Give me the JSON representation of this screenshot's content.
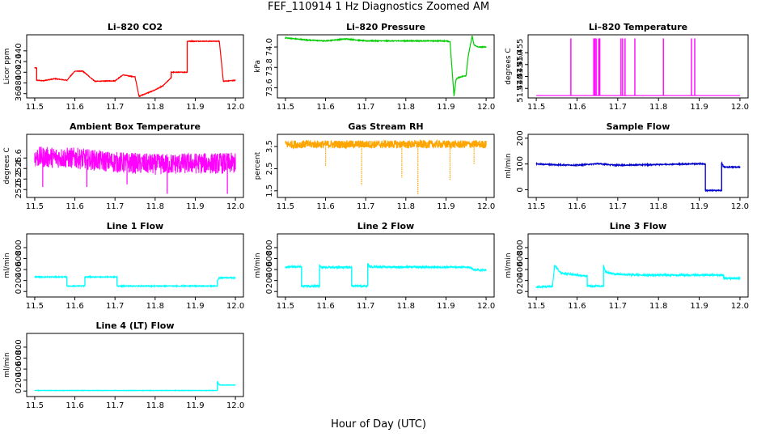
{
  "title": "FEF_110914  1 Hz Diagnostics Zoomed AM",
  "xlabel": "Hour of Day (UTC)",
  "chart_data": [
    {
      "type": "line",
      "title": "Li–820 CO2",
      "ylabel": "Licor ppm",
      "color": "#ff0000",
      "xlim": [
        11.48,
        12.02
      ],
      "ylim": [
        352,
        470
      ],
      "xticks": [
        "11.5",
        "11.6",
        "11.7",
        "11.8",
        "11.9",
        "12.0"
      ],
      "yticks": [
        "360",
        "380",
        "400",
        "420",
        "440"
      ],
      "ytick_values": [
        360,
        380,
        400,
        420,
        440
      ],
      "series": [
        {
          "x": [
            11.5,
            11.505,
            11.505,
            11.52,
            11.55,
            11.58,
            11.6,
            11.62,
            11.65,
            11.7,
            11.72,
            11.75,
            11.76,
            11.76,
            11.8,
            11.82,
            11.84,
            11.84,
            11.88,
            11.88,
            11.96,
            11.97,
            12.0
          ],
          "y": [
            408,
            408,
            385,
            384,
            388,
            385,
            402,
            402,
            383,
            384,
            395,
            391,
            355,
            355,
            367,
            375,
            390,
            400,
            400,
            458,
            458,
            383,
            385
          ]
        }
      ],
      "noise": 0.6
    },
    {
      "type": "line",
      "title": "Li–820 Pressure",
      "ylabel": "kPa",
      "color": "#00cc00",
      "xlim": [
        11.48,
        12.02
      ],
      "ylim": [
        73.5,
        74.12
      ],
      "xticks": [
        "11.5",
        "11.6",
        "11.7",
        "11.8",
        "11.9",
        "12.0"
      ],
      "yticks": [
        "73.6",
        "73.8",
        "74.0"
      ],
      "ytick_values": [
        73.6,
        73.8,
        74.0
      ],
      "series": [
        {
          "x": [
            11.5,
            11.55,
            11.6,
            11.65,
            11.7,
            11.8,
            11.9,
            11.91,
            11.92,
            11.925,
            11.93,
            11.95,
            11.955,
            11.965,
            11.97,
            11.98,
            12.0
          ],
          "y": [
            74.09,
            74.07,
            74.06,
            74.08,
            74.06,
            74.06,
            74.06,
            74.05,
            73.52,
            73.68,
            73.7,
            73.72,
            73.9,
            74.11,
            74.02,
            74.0,
            74.0
          ]
        }
      ],
      "noise": 0.004
    },
    {
      "type": "line",
      "title": "Li–820 Temperature",
      "ylabel": "degrees C",
      "color": "#ff00ff",
      "xlim": [
        11.48,
        12.02
      ],
      "ylim": [
        51.436,
        51.4625
      ],
      "xticks": [
        "11.5",
        "11.6",
        "11.7",
        "11.8",
        "11.9",
        "12.0"
      ],
      "yticks": [
        "51.440",
        "51.445",
        "51.450",
        "51.455"
      ],
      "ytick_values": [
        51.44,
        51.445,
        51.45,
        51.455
      ],
      "baseline": 51.437,
      "spike_top": 51.461,
      "spikes": [
        11.585,
        11.641,
        11.644,
        11.647,
        11.653,
        11.656,
        11.708,
        11.712,
        11.718,
        11.742,
        11.812,
        11.881,
        11.889
      ]
    },
    {
      "type": "line",
      "title": "Ambient Box Temperature",
      "ylabel": "degrees C",
      "color": "#ff00ff",
      "xlim": [
        11.48,
        12.02
      ],
      "ylim": [
        24.85,
        26.05
      ],
      "xticks": [
        "11.5",
        "11.6",
        "11.7",
        "11.8",
        "11.9",
        "12.0"
      ],
      "yticks": [
        "25.0",
        "25.2",
        "25.4",
        "25.6"
      ],
      "ytick_values": [
        25.0,
        25.2,
        25.4,
        25.6
      ],
      "series": [
        {
          "x": [
            11.5,
            11.6,
            11.7,
            11.8,
            11.9,
            12.0
          ],
          "y": [
            25.62,
            25.6,
            25.52,
            25.48,
            25.5,
            25.5
          ]
        }
      ],
      "noise": 0.2,
      "dips": [
        [
          11.52,
          25.05
        ],
        [
          11.63,
          25.05
        ],
        [
          11.73,
          25.1
        ],
        [
          11.83,
          24.92
        ],
        [
          11.98,
          24.92
        ]
      ]
    },
    {
      "type": "line",
      "title": "Gas Stream RH",
      "ylabel": "percent",
      "color": "#ffa500",
      "xlim": [
        11.48,
        12.02
      ],
      "ylim": [
        1.2,
        4.05
      ],
      "xticks": [
        "11.5",
        "11.6",
        "11.7",
        "11.8",
        "11.9",
        "12.0"
      ],
      "yticks": [
        "1.5",
        "2.5",
        "3.5"
      ],
      "ytick_values": [
        1.5,
        2.5,
        3.5
      ],
      "series": [
        {
          "x": [
            11.5,
            11.6,
            11.7,
            11.8,
            11.9,
            12.0
          ],
          "y": [
            3.6,
            3.6,
            3.6,
            3.6,
            3.6,
            3.6
          ]
        }
      ],
      "noise": 0.18,
      "dips": [
        [
          11.6,
          2.6
        ],
        [
          11.69,
          1.75
        ],
        [
          11.79,
          2.1
        ],
        [
          11.83,
          1.3
        ],
        [
          11.91,
          2.0
        ],
        [
          11.97,
          2.7
        ]
      ]
    },
    {
      "type": "line",
      "title": "Sample Flow",
      "ylabel": "ml/min",
      "color": "#0000cc",
      "xlim": [
        11.48,
        12.02
      ],
      "ylim": [
        -30,
        215
      ],
      "xticks": [
        "11.5",
        "11.6",
        "11.7",
        "11.8",
        "11.9",
        "12.0"
      ],
      "yticks": [
        "0",
        "100",
        "200"
      ],
      "ytick_values": [
        0,
        100,
        200
      ],
      "series": [
        {
          "x": [
            11.5,
            11.55,
            11.6,
            11.65,
            11.7,
            11.8,
            11.9,
            11.915,
            11.915,
            11.955,
            11.955,
            11.96,
            12.0
          ],
          "y": [
            100,
            97,
            95,
            101,
            95,
            98,
            101,
            100,
            -3,
            -3,
            105,
            88,
            88
          ]
        }
      ],
      "noise": 2
    },
    {
      "type": "line",
      "title": "Line 1 Flow",
      "ylabel": "ml/min",
      "color": "#00ffff",
      "xlim": [
        11.48,
        12.02
      ],
      "ylim": [
        -100,
        1050
      ],
      "xticks": [
        "11.5",
        "11.6",
        "11.7",
        "11.8",
        "11.9",
        "12.0"
      ],
      "yticks": [
        "0",
        "200",
        "400",
        "600",
        "800"
      ],
      "ytick_values": [
        0,
        200,
        400,
        600,
        800
      ],
      "series": [
        {
          "x": [
            11.5,
            11.58,
            11.58,
            11.625,
            11.625,
            11.705,
            11.705,
            11.955,
            11.955,
            11.96,
            12.0
          ],
          "y": [
            265,
            265,
            100,
            100,
            265,
            265,
            100,
            100,
            200,
            250,
            250
          ]
        }
      ],
      "noise": 8
    },
    {
      "type": "line",
      "title": "Line 2 Flow",
      "ylabel": "ml/min",
      "color": "#00ffff",
      "xlim": [
        11.48,
        12.02
      ],
      "ylim": [
        -100,
        1050
      ],
      "xticks": [
        "11.5",
        "11.6",
        "11.7",
        "11.8",
        "11.9",
        "12.0"
      ],
      "yticks": [
        "0",
        "200",
        "400",
        "600",
        "800"
      ],
      "ytick_values": [
        0,
        200,
        400,
        600,
        800
      ],
      "series": [
        {
          "x": [
            11.5,
            11.54,
            11.54,
            11.585,
            11.585,
            11.59,
            11.665,
            11.665,
            11.705,
            11.705,
            11.71,
            11.8,
            11.9,
            11.96,
            11.97,
            12.0
          ],
          "y": [
            450,
            450,
            100,
            100,
            480,
            440,
            440,
            100,
            100,
            510,
            450,
            445,
            445,
            440,
            390,
            390
          ]
        }
      ],
      "noise": 15
    },
    {
      "type": "line",
      "title": "Line 3 Flow",
      "ylabel": "ml/min",
      "color": "#00ffff",
      "xlim": [
        11.48,
        12.02
      ],
      "ylim": [
        -100,
        1050
      ],
      "xticks": [
        "11.5",
        "11.6",
        "11.7",
        "11.8",
        "11.9",
        "12.0"
      ],
      "yticks": [
        "0",
        "200",
        "400",
        "600",
        "800"
      ],
      "ytick_values": [
        0,
        200,
        400,
        600,
        800
      ],
      "series": [
        {
          "x": [
            11.5,
            11.54,
            11.54,
            11.545,
            11.56,
            11.62,
            11.625,
            11.625,
            11.665,
            11.665,
            11.67,
            11.69,
            11.75,
            11.9,
            11.96,
            11.96,
            12.0
          ],
          "y": [
            80,
            100,
            100,
            480,
            340,
            280,
            280,
            100,
            100,
            480,
            360,
            320,
            300,
            300,
            300,
            240,
            240
          ]
        }
      ],
      "noise": 15
    },
    {
      "type": "line",
      "title": "Line 4 (LT) Flow",
      "ylabel": "ml/min",
      "color": "#00ffff",
      "xlim": [
        11.48,
        12.02
      ],
      "ylim": [
        -100,
        1050
      ],
      "xticks": [
        "11.5",
        "11.6",
        "11.7",
        "11.8",
        "11.9",
        "12.0"
      ],
      "yticks": [
        "0",
        "200",
        "400",
        "600",
        "800"
      ],
      "ytick_values": [
        0,
        200,
        400,
        600,
        800
      ],
      "series": [
        {
          "x": [
            11.5,
            11.955,
            11.955,
            11.96,
            12.0
          ],
          "y": [
            10,
            10,
            180,
            110,
            110
          ]
        }
      ],
      "noise": 4
    }
  ]
}
